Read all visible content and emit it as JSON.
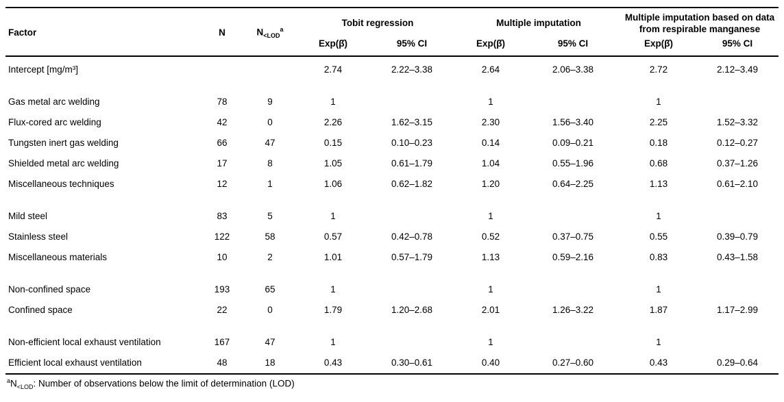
{
  "table": {
    "headers": {
      "factor": "Factor",
      "n": "N",
      "n_lod": {
        "base": "N",
        "sub": "<LOD",
        "sup": "a"
      },
      "groups": [
        "Tobit regression",
        "Multiple imputation",
        "Multiple imputation based on data from respirable manganese"
      ],
      "exp": "Exp(β̂)",
      "ci": "95% CI"
    },
    "rows": [
      {
        "factor": "Intercept [mg/m³]",
        "n": "",
        "nlod": "",
        "tobit_exp": "2.74",
        "tobit_ci": "2.22–3.38",
        "mi_exp": "2.64",
        "mi_ci": "2.06–3.38",
        "mir_exp": "2.72",
        "mir_ci": "2.12–3.49"
      },
      {
        "spacer": true
      },
      {
        "factor": "Gas metal arc welding",
        "n": "78",
        "nlod": "9",
        "tobit_exp": "1",
        "tobit_ci": "",
        "mi_exp": "1",
        "mi_ci": "",
        "mir_exp": "1",
        "mir_ci": ""
      },
      {
        "factor": "Flux-cored arc welding",
        "n": "42",
        "nlod": "0",
        "tobit_exp": "2.26",
        "tobit_ci": "1.62–3.15",
        "mi_exp": "2.30",
        "mi_ci": "1.56–3.40",
        "mir_exp": "2.25",
        "mir_ci": "1.52–3.32"
      },
      {
        "factor": "Tungsten inert gas welding",
        "n": "66",
        "nlod": "47",
        "tobit_exp": "0.15",
        "tobit_ci": "0.10–0.23",
        "mi_exp": "0.14",
        "mi_ci": "0.09–0.21",
        "mir_exp": "0.18",
        "mir_ci": "0.12–0.27"
      },
      {
        "factor": "Shielded metal arc welding",
        "n": "17",
        "nlod": "8",
        "tobit_exp": "1.05",
        "tobit_ci": "0.61–1.79",
        "mi_exp": "1.04",
        "mi_ci": "0.55–1.96",
        "mir_exp": "0.68",
        "mir_ci": "0.37–1.26"
      },
      {
        "factor": "Miscellaneous techniques",
        "n": "12",
        "nlod": "1",
        "tobit_exp": "1.06",
        "tobit_ci": "0.62–1.82",
        "mi_exp": "1.20",
        "mi_ci": "0.64–2.25",
        "mir_exp": "1.13",
        "mir_ci": "0.61–2.10"
      },
      {
        "spacer": true
      },
      {
        "factor": "Mild steel",
        "n": "83",
        "nlod": "5",
        "tobit_exp": "1",
        "tobit_ci": "",
        "mi_exp": "1",
        "mi_ci": "",
        "mir_exp": "1",
        "mir_ci": ""
      },
      {
        "factor": "Stainless steel",
        "n": "122",
        "nlod": "58",
        "tobit_exp": "0.57",
        "tobit_ci": "0.42–0.78",
        "mi_exp": "0.52",
        "mi_ci": "0.37–0.75",
        "mir_exp": "0.55",
        "mir_ci": "0.39–0.79"
      },
      {
        "factor": "Miscellaneous materials",
        "n": "10",
        "nlod": "2",
        "tobit_exp": "1.01",
        "tobit_ci": "0.57–1.79",
        "mi_exp": "1.13",
        "mi_ci": "0.59–2.16",
        "mir_exp": "0.83",
        "mir_ci": "0.43–1.58"
      },
      {
        "spacer": true
      },
      {
        "factor": "Non-confined space",
        "n": "193",
        "nlod": "65",
        "tobit_exp": "1",
        "tobit_ci": "",
        "mi_exp": "1",
        "mi_ci": "",
        "mir_exp": "1",
        "mir_ci": ""
      },
      {
        "factor": "Confined space",
        "n": "22",
        "nlod": "0",
        "tobit_exp": "1.79",
        "tobit_ci": "1.20–2.68",
        "mi_exp": "2.01",
        "mi_ci": "1.26–3.22",
        "mir_exp": "1.87",
        "mir_ci": "1.17–2.99"
      },
      {
        "spacer": true
      },
      {
        "factor": "Non-efficient local exhaust ventilation",
        "n": "167",
        "nlod": "47",
        "tobit_exp": "1",
        "tobit_ci": "",
        "mi_exp": "1",
        "mi_ci": "",
        "mir_exp": "1",
        "mir_ci": ""
      },
      {
        "factor": "Efficient local exhaust ventilation",
        "n": "48",
        "nlod": "18",
        "tobit_exp": "0.43",
        "tobit_ci": "0.30–0.61",
        "mi_exp": "0.40",
        "mi_ci": "0.27–0.60",
        "mir_exp": "0.43",
        "mir_ci": "0.29–0.64"
      }
    ]
  },
  "footnote": {
    "sup": "a",
    "n": "N",
    "sub": "<LOD",
    "text": ": Number of observations below the limit of determination (LOD)"
  }
}
